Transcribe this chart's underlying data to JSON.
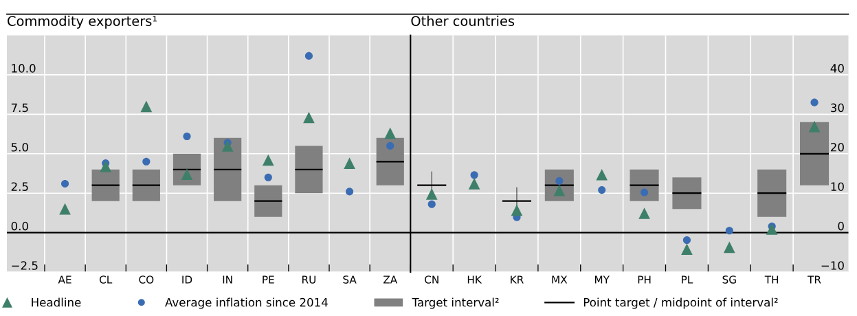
{
  "chart_data": [
    {
      "type": "scatter",
      "title": "Commodity exporters¹",
      "categories": [
        "AE",
        "CL",
        "CO",
        "ID",
        "IN",
        "PE",
        "RU",
        "SA",
        "ZA"
      ],
      "ylim": [
        -2.5,
        12.5
      ],
      "yticks": [
        {
          "value": -2.5,
          "label": "−2.5"
        },
        {
          "value": 0,
          "label": "0.0"
        },
        {
          "value": 2.5,
          "label": "2.5"
        },
        {
          "value": 5,
          "label": "5.0"
        },
        {
          "value": 7.5,
          "label": "7.5"
        },
        {
          "value": 10,
          "label": "10.0"
        }
      ],
      "grid": true,
      "legend": "bottom",
      "ref_lines": [
        {
          "axis": "y",
          "value": 0,
          "color": "#000000"
        }
      ],
      "series": [
        {
          "name": "Headline",
          "marker": "triangle",
          "color": "#3e7f6a",
          "values": [
            1.5,
            4.2,
            8.0,
            3.7,
            5.5,
            4.6,
            7.3,
            4.4,
            6.3
          ]
        },
        {
          "name": "Average inflation since 2014",
          "marker": "circle",
          "color": "#3a6cb3",
          "values": [
            3.1,
            4.4,
            4.5,
            6.1,
            5.7,
            3.5,
            11.2,
            2.6,
            5.5
          ]
        },
        {
          "name": "Target interval²",
          "type": "bar",
          "color": "#808080",
          "base": [
            null,
            2,
            2,
            3,
            2,
            1,
            2.5,
            null,
            3
          ],
          "values": [
            null,
            2,
            2,
            2,
            4,
            2,
            3,
            null,
            3
          ]
        },
        {
          "name": "Point target / midpoint of interval²",
          "type": "bar",
          "color": "#000000",
          "base": [
            null,
            3,
            3,
            4,
            4,
            2,
            4,
            null,
            4.5
          ],
          "values": [
            null,
            0,
            0,
            0,
            0,
            0,
            0,
            null,
            0
          ]
        }
      ]
    },
    {
      "type": "scatter",
      "title": "Other countries",
      "categories": [
        "CN",
        "HK",
        "KR",
        "MX",
        "MY",
        "PH",
        "PL",
        "SG",
        "TH",
        "TR"
      ],
      "y2lim": [
        -10,
        50
      ],
      "y2ticks": [
        {
          "value": -10,
          "label": "−10"
        },
        0,
        10,
        20,
        30,
        40
      ],
      "grid": true,
      "ref_lines": [
        {
          "axis": "y2",
          "value": 0,
          "color": "#000000"
        }
      ],
      "series": [
        {
          "axis": "y2",
          "marker": "triangle",
          "color": "#3e7f6a",
          "values": [
            9.8,
            12.4,
            5.7,
            10.7,
            14.7,
            4.9,
            -4.2,
            -3.7,
            0.9,
            26.9
          ]
        },
        {
          "axis": "y2",
          "marker": "circle",
          "color": "#3a6cb3",
          "values": [
            7.2,
            14.6,
            3.9,
            13.1,
            10.8,
            10.2,
            -1.9,
            0.5,
            1.6,
            33
          ]
        },
        {
          "type": "bar",
          "axis": "y2",
          "color": "#808080",
          "base": [
            null,
            null,
            null,
            8,
            null,
            8,
            6,
            null,
            4,
            12
          ],
          "values": [
            null,
            null,
            null,
            8,
            null,
            8,
            8,
            null,
            12,
            16
          ]
        },
        {
          "axis": "y2",
          "type": "bar",
          "color": "#000000",
          "base": [
            12,
            null,
            8,
            12,
            null,
            12,
            10,
            null,
            10,
            20
          ],
          "values": [
            0,
            null,
            0,
            0,
            null,
            0,
            0,
            null,
            0,
            0
          ],
          "errors": [
            3.5,
            null,
            3.5,
            null,
            null,
            null,
            null,
            null,
            null,
            null
          ]
        }
      ]
    }
  ]
}
